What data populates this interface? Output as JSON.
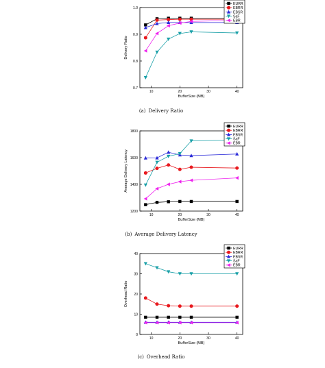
{
  "figure": {
    "captions": [
      {
        "label": "(a)",
        "text": "Delivery Ratio"
      },
      {
        "label": "(b)",
        "text": "Average Delivery Latency"
      },
      {
        "label": "(c)",
        "text": "Overhead Ratio"
      }
    ]
  },
  "series_styles": [
    {
      "name": "EURR",
      "color": "#000000",
      "marker": "square"
    },
    {
      "name": "EBRR",
      "color": "#e8191e",
      "marker": "circle"
    },
    {
      "name": "EBSR",
      "color": "#2a2ad8",
      "marker": "triangle-up"
    },
    {
      "name": "SaF",
      "color": "#1aa0a8",
      "marker": "triangle-down"
    },
    {
      "name": "EBR",
      "color": "#ee22ee",
      "marker": "triangle-left"
    }
  ],
  "chart_data": [
    {
      "type": "line",
      "xlabel": "BufferSize (MB)",
      "ylabel": "Delivery Ratio",
      "x": [
        8,
        12,
        16,
        20,
        24,
        40
      ],
      "xticks": [
        10,
        20,
        30,
        40
      ],
      "xlim": [
        6,
        42
      ],
      "ylim": [
        0.7,
        1.0
      ],
      "yticks": [
        "0.7",
        "0.8",
        "0.9",
        "1.0"
      ],
      "legend": "top-right",
      "series": [
        {
          "name": "EURR",
          "values": [
            0.935,
            0.958,
            0.96,
            0.96,
            0.96,
            0.96
          ]
        },
        {
          "name": "EBRR",
          "values": [
            0.887,
            0.953,
            0.955,
            0.956,
            0.956,
            0.956
          ]
        },
        {
          "name": "EBSR",
          "values": [
            0.925,
            0.94,
            0.944,
            0.944,
            0.944,
            0.944
          ]
        },
        {
          "name": "SaF",
          "values": [
            0.738,
            0.833,
            0.882,
            0.903,
            0.909,
            0.905
          ]
        },
        {
          "name": "EBR",
          "values": [
            0.838,
            0.903,
            0.932,
            0.942,
            0.948,
            0.952
          ]
        }
      ]
    },
    {
      "type": "line",
      "xlabel": "BufferSize (MB)",
      "ylabel": "Average Delivery Latency",
      "x": [
        8,
        12,
        16,
        20,
        24,
        40
      ],
      "xticks": [
        10,
        20,
        30,
        40
      ],
      "xlim": [
        6,
        42
      ],
      "ylim": [
        1200,
        1800
      ],
      "yticks": [
        "1200",
        "1400",
        "1600",
        "1800"
      ],
      "legend": "top-right",
      "series": [
        {
          "name": "EURR",
          "values": [
            1248,
            1265,
            1270,
            1272,
            1272,
            1272
          ]
        },
        {
          "name": "EBRR",
          "values": [
            1485,
            1520,
            1545,
            1512,
            1528,
            1522
          ]
        },
        {
          "name": "EBSR",
          "values": [
            1597,
            1598,
            1640,
            1620,
            1615,
            1627
          ]
        },
        {
          "name": "SaF",
          "values": [
            1395,
            1565,
            1610,
            1630,
            1725,
            1732
          ]
        },
        {
          "name": "EBR",
          "values": [
            1292,
            1368,
            1400,
            1420,
            1430,
            1448
          ]
        }
      ]
    },
    {
      "type": "line",
      "xlabel": "BufferSize (MB)",
      "ylabel": "Overhead Ratio",
      "x": [
        8,
        12,
        16,
        20,
        24,
        40
      ],
      "xticks": [
        10,
        20,
        30,
        40
      ],
      "xlim": [
        6,
        42
      ],
      "ylim": [
        0,
        40
      ],
      "yticks": [
        "0",
        "10",
        "20",
        "30",
        "40"
      ],
      "legend": "top-right",
      "series": [
        {
          "name": "EURR",
          "values": [
            8.5,
            8.5,
            8.5,
            8.5,
            8.5,
            8.5
          ]
        },
        {
          "name": "EBRR",
          "values": [
            18.0,
            15.0,
            14.2,
            14.0,
            14.0,
            14.0
          ]
        },
        {
          "name": "EBSR",
          "values": [
            6.0,
            6.0,
            6.0,
            6.0,
            6.0,
            6.0
          ]
        },
        {
          "name": "SaF",
          "values": [
            35.0,
            33.0,
            31.0,
            30.0,
            30.0,
            30.0
          ]
        },
        {
          "name": "EBR",
          "values": [
            5.8,
            5.8,
            5.8,
            5.8,
            5.8,
            5.8
          ]
        }
      ]
    }
  ]
}
